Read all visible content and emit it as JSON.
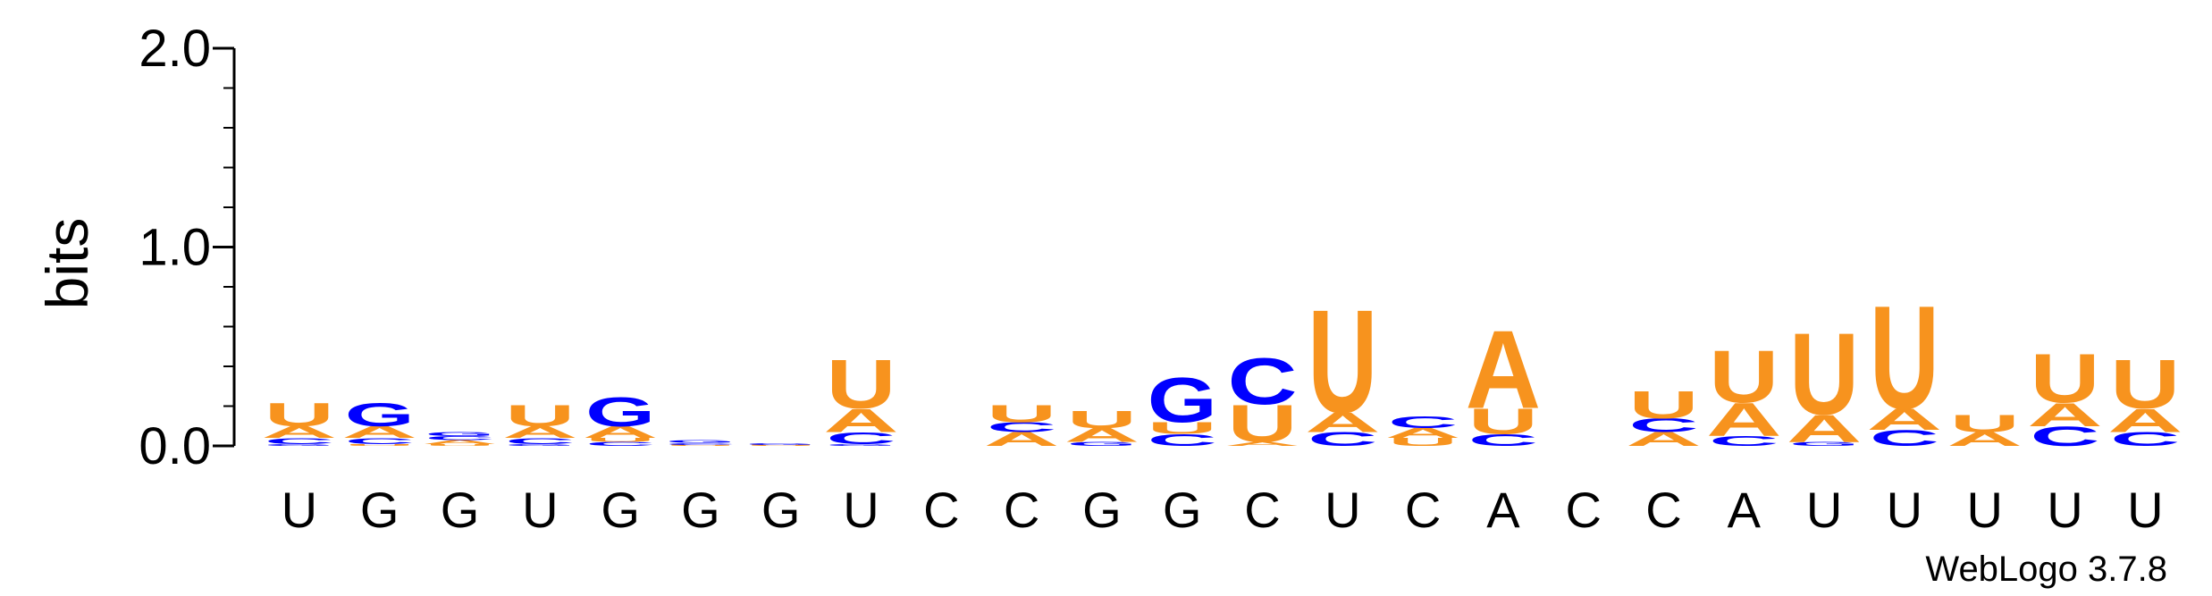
{
  "chart_data": {
    "type": "sequence-logo",
    "ylabel": "bits",
    "ylim": [
      0,
      2.0
    ],
    "yticks": [
      "0.0",
      "1.0",
      "2.0"
    ],
    "watermark": "WebLogo 3.7.8",
    "colors": {
      "A": "#f7931e",
      "U": "#f7931e",
      "G": "#0000ff",
      "C": "#0000ff"
    },
    "positions": [
      {
        "label": "U",
        "stack": [
          {
            "l": "G",
            "v": 0.01
          },
          {
            "l": "C",
            "v": 0.03
          },
          {
            "l": "A",
            "v": 0.06
          },
          {
            "l": "U",
            "v": 0.12
          }
        ]
      },
      {
        "label": "G",
        "stack": [
          {
            "l": "U",
            "v": 0.01
          },
          {
            "l": "C",
            "v": 0.03
          },
          {
            "l": "A",
            "v": 0.06
          },
          {
            "l": "G",
            "v": 0.12
          }
        ]
      },
      {
        "label": "G",
        "stack": [
          {
            "l": "U",
            "v": 0.01
          },
          {
            "l": "A",
            "v": 0.02
          },
          {
            "l": "C",
            "v": 0.02
          },
          {
            "l": "G",
            "v": 0.02
          }
        ]
      },
      {
        "label": "U",
        "stack": [
          {
            "l": "G",
            "v": 0.01
          },
          {
            "l": "C",
            "v": 0.03
          },
          {
            "l": "A",
            "v": 0.06
          },
          {
            "l": "U",
            "v": 0.11
          }
        ]
      },
      {
        "label": "G",
        "stack": [
          {
            "l": "C",
            "v": 0.02
          },
          {
            "l": "U",
            "v": 0.02
          },
          {
            "l": "A",
            "v": 0.06
          },
          {
            "l": "G",
            "v": 0.15
          }
        ]
      },
      {
        "label": "G",
        "stack": [
          {
            "l": "U",
            "v": 0.005
          },
          {
            "l": "C",
            "v": 0.01
          },
          {
            "l": "G",
            "v": 0.015
          }
        ]
      },
      {
        "label": "G",
        "stack": [
          {
            "l": "U",
            "v": 0.005
          },
          {
            "l": "G",
            "v": 0.01
          }
        ]
      },
      {
        "label": "U",
        "stack": [
          {
            "l": "G",
            "v": 0.01
          },
          {
            "l": "C",
            "v": 0.06
          },
          {
            "l": "A",
            "v": 0.12
          },
          {
            "l": "U",
            "v": 0.25
          }
        ]
      },
      {
        "label": "C",
        "stack": []
      },
      {
        "label": "C",
        "stack": [
          {
            "l": "A",
            "v": 0.07
          },
          {
            "l": "C",
            "v": 0.05
          },
          {
            "l": "U",
            "v": 0.09
          }
        ]
      },
      {
        "label": "G",
        "stack": [
          {
            "l": "G",
            "v": 0.02
          },
          {
            "l": "A",
            "v": 0.07
          },
          {
            "l": "U",
            "v": 0.09
          }
        ]
      },
      {
        "label": "G",
        "stack": [
          {
            "l": "C",
            "v": 0.06
          },
          {
            "l": "U",
            "v": 0.06
          },
          {
            "l": "G",
            "v": 0.23
          }
        ]
      },
      {
        "label": "C",
        "stack": [
          {
            "l": "A",
            "v": 0.02
          },
          {
            "l": "U",
            "v": 0.19
          },
          {
            "l": "C",
            "v": 0.24
          }
        ]
      },
      {
        "label": "U",
        "stack": [
          {
            "l": "C",
            "v": 0.07
          },
          {
            "l": "A",
            "v": 0.1
          },
          {
            "l": "U",
            "v": 0.53
          }
        ]
      },
      {
        "label": "C",
        "stack": [
          {
            "l": "U",
            "v": 0.04
          },
          {
            "l": "A",
            "v": 0.05
          },
          {
            "l": "C",
            "v": 0.06
          }
        ]
      },
      {
        "label": "A",
        "stack": [
          {
            "l": "C",
            "v": 0.06
          },
          {
            "l": "U",
            "v": 0.13
          },
          {
            "l": "A",
            "v": 0.4
          }
        ]
      },
      {
        "label": "C",
        "stack": []
      },
      {
        "label": "C",
        "stack": [
          {
            "l": "A",
            "v": 0.07
          },
          {
            "l": "C",
            "v": 0.07
          },
          {
            "l": "U",
            "v": 0.14
          }
        ]
      },
      {
        "label": "A",
        "stack": [
          {
            "l": "C",
            "v": 0.05
          },
          {
            "l": "A",
            "v": 0.17
          },
          {
            "l": "U",
            "v": 0.27
          }
        ]
      },
      {
        "label": "U",
        "stack": [
          {
            "l": "G",
            "v": 0.02
          },
          {
            "l": "A",
            "v": 0.14
          },
          {
            "l": "U",
            "v": 0.42
          }
        ]
      },
      {
        "label": "U",
        "stack": [
          {
            "l": "C",
            "v": 0.08
          },
          {
            "l": "A",
            "v": 0.11
          },
          {
            "l": "U",
            "v": 0.53
          }
        ]
      },
      {
        "label": "U",
        "stack": [
          {
            "l": "A",
            "v": 0.07
          },
          {
            "l": "U",
            "v": 0.09
          }
        ]
      },
      {
        "label": "U",
        "stack": [
          {
            "l": "C",
            "v": 0.1
          },
          {
            "l": "A",
            "v": 0.12
          },
          {
            "l": "U",
            "v": 0.25
          }
        ]
      },
      {
        "label": "U",
        "stack": [
          {
            "l": "C",
            "v": 0.07
          },
          {
            "l": "A",
            "v": 0.12
          },
          {
            "l": "U",
            "v": 0.25
          }
        ]
      }
    ]
  }
}
